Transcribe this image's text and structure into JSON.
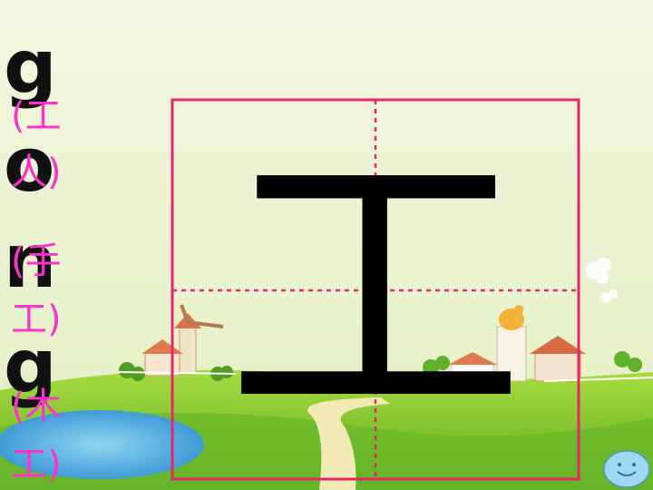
{
  "pinyin": [
    "g",
    "o",
    "n",
    "g"
  ],
  "words": [
    "(工",
    "人)",
    "(手",
    "工)",
    "(木",
    "工)"
  ],
  "character": "工",
  "colors": {
    "grid_border": "#e8246a",
    "guide_line": "#e8246a",
    "word_text": "#ff33cc",
    "sky_top": "#f4f7dc",
    "grass": "#7cc62e"
  },
  "icons": [
    "windmill-icon",
    "house-icon",
    "tower-icon",
    "pond-icon",
    "smiley-icon",
    "cloud-icon"
  ]
}
